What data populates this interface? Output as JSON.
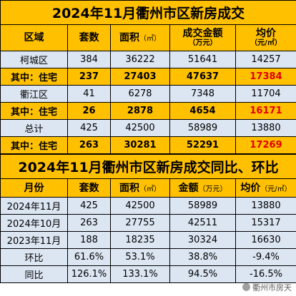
{
  "table1": {
    "title": "2024年11月衢州市区新房成交",
    "headers": {
      "region": "区域",
      "units": "套数",
      "area": "面积",
      "area_unit": "（㎡）",
      "amount": "成交金额",
      "amount_unit": "（万元）",
      "avg": "均价",
      "avg_unit": "（元/㎡）"
    },
    "rows": [
      {
        "region": "柯城区",
        "units": "384",
        "area": "36222",
        "amount": "51641",
        "avg": "14257",
        "style": "blue"
      },
      {
        "region": "其中：住宅",
        "units": "237",
        "area": "27403",
        "amount": "47637",
        "avg": "17384",
        "style": "yellow"
      },
      {
        "region": "衢江区",
        "units": "41",
        "area": "6278",
        "amount": "7348",
        "avg": "11704",
        "style": "blue"
      },
      {
        "region": "其中：住宅",
        "units": "26",
        "area": "2878",
        "amount": "4654",
        "avg": "16171",
        "style": "yellow"
      },
      {
        "region": "总计",
        "units": "425",
        "area": "42500",
        "amount": "58989",
        "avg": "13880",
        "style": "blue"
      },
      {
        "region": "其中：住宅",
        "units": "263",
        "area": "30281",
        "amount": "52291",
        "avg": "17269",
        "style": "yellow"
      }
    ]
  },
  "table2": {
    "title": "2024年11月衢州市区新房成交同比、环比",
    "headers": {
      "month": "月份",
      "units": "套数",
      "area": "面积",
      "area_unit": "（㎡）",
      "amount": "金额",
      "amount_unit": "（万元）",
      "avg": "均价",
      "avg_unit": "（元/㎡）"
    },
    "rows": [
      {
        "month": "2024年11月",
        "units": "425",
        "area": "42500",
        "amount": "58989",
        "avg": "13880"
      },
      {
        "month": "2024年10月",
        "units": "263",
        "area": "27755",
        "amount": "42511",
        "avg": "15317"
      },
      {
        "month": "2023年11月",
        "units": "188",
        "area": "18235",
        "amount": "30324",
        "avg": "16630"
      },
      {
        "month": "环比",
        "units": "61.6%",
        "area": "53.1%",
        "amount": "38.8%",
        "avg": "-9.4%"
      },
      {
        "month": "同比",
        "units": "126.1%",
        "area": "133.1%",
        "amount": "94.5%",
        "avg": "-16.5%"
      }
    ]
  },
  "colors": {
    "header_bg": "#ffc000",
    "row_bg": "#dce6f2",
    "highlight_text": "#e00000"
  },
  "watermark": {
    "icon": "weibo-icon",
    "text": "衢州市房天"
  }
}
